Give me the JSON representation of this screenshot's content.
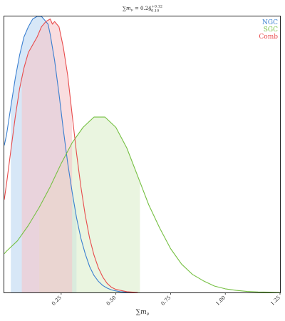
{
  "chart_data": {
    "type": "area",
    "title": {
      "prefix": "∑",
      "main": "m",
      "sub": "ν",
      "value": " = 0.24",
      "upper": "+0.12",
      "lower": "−0.10"
    },
    "xlabel": {
      "prefix": "∑",
      "main": "m",
      "sub": "ν"
    },
    "ylabel": "",
    "xlim": [
      -0.01,
      1.25
    ],
    "ylim": [
      0,
      1.07
    ],
    "xticks": [
      0.25,
      0.5,
      0.75,
      1.0,
      1.25
    ],
    "xtick_labels": [
      "0.25",
      "0.50",
      "0.75",
      "1.00",
      "1.25"
    ],
    "grid": false,
    "legend_position": "top-right",
    "series": [
      {
        "name": "NGC",
        "color": "#3a7fd0",
        "fill": "#bcd7f1",
        "shade_range": [
          0.02,
          0.32
        ],
        "x": [
          -0.01,
          0.0,
          0.02,
          0.04,
          0.06,
          0.08,
          0.1,
          0.12,
          0.14,
          0.16,
          0.18,
          0.19,
          0.2,
          0.22,
          0.24,
          0.26,
          0.28,
          0.3,
          0.32,
          0.34,
          0.36,
          0.38,
          0.4,
          0.42,
          0.44,
          0.46,
          0.48,
          0.5,
          0.52,
          0.55,
          0.6
        ],
        "y": [
          0.57,
          0.61,
          0.72,
          0.83,
          0.92,
          0.99,
          1.03,
          1.06,
          1.07,
          1.07,
          1.05,
          1.04,
          1.0,
          0.9,
          0.77,
          0.63,
          0.5,
          0.39,
          0.29,
          0.21,
          0.15,
          0.1,
          0.066,
          0.043,
          0.027,
          0.017,
          0.01,
          0.006,
          0.003,
          0.001,
          0.0
        ]
      },
      {
        "name": "SGC",
        "color": "#76c043",
        "fill": "#dcefcc",
        "shade_range": [
          0.15,
          0.61
        ],
        "x": [
          -0.01,
          0.0,
          0.05,
          0.1,
          0.15,
          0.2,
          0.25,
          0.3,
          0.35,
          0.4,
          0.45,
          0.5,
          0.55,
          0.6,
          0.65,
          0.7,
          0.75,
          0.8,
          0.85,
          0.9,
          0.95,
          1.0,
          1.05,
          1.1,
          1.15,
          1.2,
          1.25
        ],
        "y": [
          0.15,
          0.16,
          0.2,
          0.26,
          0.33,
          0.41,
          0.5,
          0.58,
          0.64,
          0.68,
          0.68,
          0.64,
          0.56,
          0.45,
          0.34,
          0.25,
          0.17,
          0.11,
          0.07,
          0.045,
          0.025,
          0.014,
          0.008,
          0.004,
          0.002,
          0.001,
          0.0
        ]
      },
      {
        "name": "Comb",
        "color": "#e84c4c",
        "fill": "#f5c7c9",
        "shade_range": [
          0.07,
          0.3
        ],
        "x": [
          -0.01,
          0.0,
          0.02,
          0.04,
          0.06,
          0.08,
          0.1,
          0.12,
          0.14,
          0.16,
          0.18,
          0.2,
          0.21,
          0.22,
          0.23,
          0.24,
          0.26,
          0.28,
          0.3,
          0.32,
          0.34,
          0.36,
          0.38,
          0.4,
          0.42,
          0.44,
          0.46,
          0.48,
          0.5,
          0.55,
          0.6
        ],
        "y": [
          0.36,
          0.42,
          0.55,
          0.68,
          0.79,
          0.87,
          0.93,
          0.96,
          0.99,
          1.03,
          1.05,
          1.06,
          1.04,
          1.05,
          1.04,
          1.03,
          0.95,
          0.84,
          0.69,
          0.54,
          0.41,
          0.3,
          0.21,
          0.145,
          0.095,
          0.06,
          0.035,
          0.02,
          0.012,
          0.003,
          0.0
        ]
      }
    ]
  }
}
